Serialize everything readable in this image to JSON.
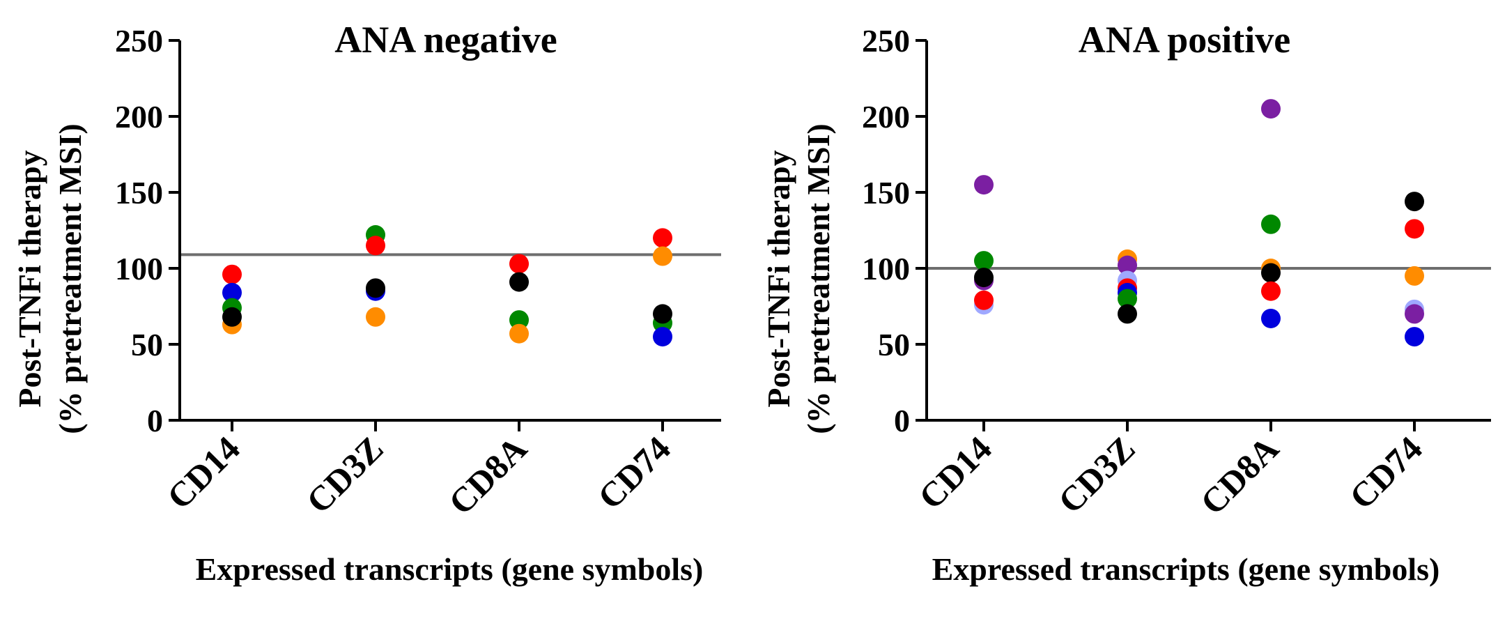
{
  "chart_data": [
    {
      "type": "scatter",
      "title": "ANA negative",
      "xlabel": "Expressed transcripts  (gene symbols)",
      "ylabel": [
        "Post-TNFi  therapy",
        "(% pretreatment MSI)"
      ],
      "categories": [
        "CD14",
        "CD3Z",
        "CD8A",
        "CD74"
      ],
      "ylim": [
        0,
        250
      ],
      "yticks": [
        0,
        50,
        100,
        150,
        200,
        250
      ],
      "reference_line": 109,
      "grid": false,
      "points": [
        {
          "category": "CD14",
          "y": 96,
          "color": "#ff0000"
        },
        {
          "category": "CD14",
          "y": 84,
          "color": "#0000dd"
        },
        {
          "category": "CD14",
          "y": 74,
          "color": "#008800"
        },
        {
          "category": "CD14",
          "y": 63,
          "color": "#ff8c00"
        },
        {
          "category": "CD14",
          "y": 68,
          "color": "#000000"
        },
        {
          "category": "CD3Z",
          "y": 122,
          "color": "#008800"
        },
        {
          "category": "CD3Z",
          "y": 115,
          "color": "#ff0000"
        },
        {
          "category": "CD3Z",
          "y": 85,
          "color": "#0000dd"
        },
        {
          "category": "CD3Z",
          "y": 87,
          "color": "#000000"
        },
        {
          "category": "CD3Z",
          "y": 68,
          "color": "#ff8c00"
        },
        {
          "category": "CD8A",
          "y": 103,
          "color": "#ff0000"
        },
        {
          "category": "CD8A",
          "y": 91,
          "color": "#000000"
        },
        {
          "category": "CD8A",
          "y": 66,
          "color": "#008800"
        },
        {
          "category": "CD8A",
          "y": 57,
          "color": "#ff8c00"
        },
        {
          "category": "CD74",
          "y": 120,
          "color": "#ff0000"
        },
        {
          "category": "CD74",
          "y": 108,
          "color": "#ff8c00"
        },
        {
          "category": "CD74",
          "y": 64,
          "color": "#008800"
        },
        {
          "category": "CD74",
          "y": 55,
          "color": "#0000dd"
        },
        {
          "category": "CD74",
          "y": 70,
          "color": "#000000"
        }
      ]
    },
    {
      "type": "scatter",
      "title": "ANA positive",
      "xlabel": "Expressed transcripts  (gene symbols)",
      "ylabel": [
        "Post-TNFi  therapy",
        "(% pretreatment MSI)"
      ],
      "categories": [
        "CD14",
        "CD3Z",
        "CD8A",
        "CD74"
      ],
      "ylim": [
        0,
        250
      ],
      "yticks": [
        0,
        50,
        100,
        150,
        200,
        250
      ],
      "reference_line": 100,
      "grid": false,
      "points": [
        {
          "category": "CD14",
          "y": 155,
          "color": "#7b1fa2"
        },
        {
          "category": "CD14",
          "y": 105,
          "color": "#008800"
        },
        {
          "category": "CD14",
          "y": 92,
          "color": "#7b1fa2"
        },
        {
          "category": "CD14",
          "y": 76,
          "color": "#9fa8ff"
        },
        {
          "category": "CD14",
          "y": 79,
          "color": "#ff0000"
        },
        {
          "category": "CD14",
          "y": 94,
          "color": "#000000"
        },
        {
          "category": "CD3Z",
          "y": 106,
          "color": "#ff8c00"
        },
        {
          "category": "CD3Z",
          "y": 102,
          "color": "#7b1fa2"
        },
        {
          "category": "CD3Z",
          "y": 92,
          "color": "#9fa8ff"
        },
        {
          "category": "CD3Z",
          "y": 87,
          "color": "#ff0000"
        },
        {
          "category": "CD3Z",
          "y": 84,
          "color": "#0000dd"
        },
        {
          "category": "CD3Z",
          "y": 80,
          "color": "#008800"
        },
        {
          "category": "CD3Z",
          "y": 70,
          "color": "#000000"
        },
        {
          "category": "CD8A",
          "y": 205,
          "color": "#7b1fa2"
        },
        {
          "category": "CD8A",
          "y": 129,
          "color": "#008800"
        },
        {
          "category": "CD8A",
          "y": 100,
          "color": "#ff8c00"
        },
        {
          "category": "CD8A",
          "y": 97,
          "color": "#000000"
        },
        {
          "category": "CD8A",
          "y": 85,
          "color": "#ff0000"
        },
        {
          "category": "CD8A",
          "y": 67,
          "color": "#0000dd"
        },
        {
          "category": "CD74",
          "y": 144,
          "color": "#000000"
        },
        {
          "category": "CD74",
          "y": 126,
          "color": "#ff0000"
        },
        {
          "category": "CD74",
          "y": 95,
          "color": "#ff8c00"
        },
        {
          "category": "CD74",
          "y": 73,
          "color": "#9fa8ff"
        },
        {
          "category": "CD74",
          "y": 70,
          "color": "#7b1fa2"
        },
        {
          "category": "CD74",
          "y": 55,
          "color": "#0000dd"
        }
      ]
    }
  ]
}
